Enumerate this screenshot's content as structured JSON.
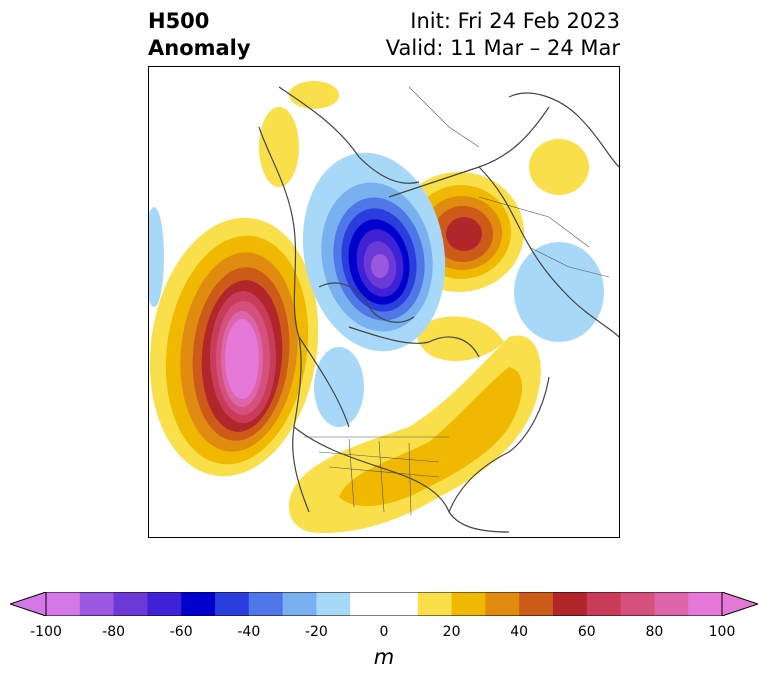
{
  "title": {
    "left_line1": "H500",
    "left_line2": "Anomaly",
    "right_line1": "Init: Fri 24 Feb 2023",
    "right_line2": "Valid: 11 Mar – 24 Mar"
  },
  "colorbar": {
    "unit": "m",
    "min": -100,
    "max": 100,
    "step": 10,
    "extend": "both",
    "tick_labels": [
      "-100",
      "-80",
      "-60",
      "-40",
      "-20",
      "0",
      "20",
      "40",
      "60",
      "80",
      "100"
    ],
    "colors": [
      "#d478e8",
      "#9a57df",
      "#6b3ad6",
      "#3f22d6",
      "#0000cc",
      "#2a3ede",
      "#5077e8",
      "#78b0f0",
      "#a8d8f8",
      "#ffffff",
      "#ffffff",
      "#f9df4a",
      "#f0b800",
      "#e08c10",
      "#cc5a18",
      "#b0262a",
      "#c83c5a",
      "#d6507e",
      "#dd65aa",
      "#e678d8"
    ],
    "under_color": "#d478e8",
    "over_color": "#e678d8"
  },
  "map": {
    "projection": "north-polar-stereographic",
    "features": [
      {
        "name": "ridge-west-pacific",
        "sign": "positive",
        "peak": 100
      },
      {
        "name": "trough-north-pole",
        "sign": "negative",
        "peak": -70
      },
      {
        "name": "ridge-east-siberia",
        "sign": "positive",
        "peak": 60
      },
      {
        "name": "ridge-eastern-north-america",
        "sign": "positive",
        "peak": 30
      },
      {
        "name": "trough-western-north-america",
        "sign": "negative",
        "peak": -15
      },
      {
        "name": "trough-siberia",
        "sign": "negative",
        "peak": -15
      }
    ]
  }
}
